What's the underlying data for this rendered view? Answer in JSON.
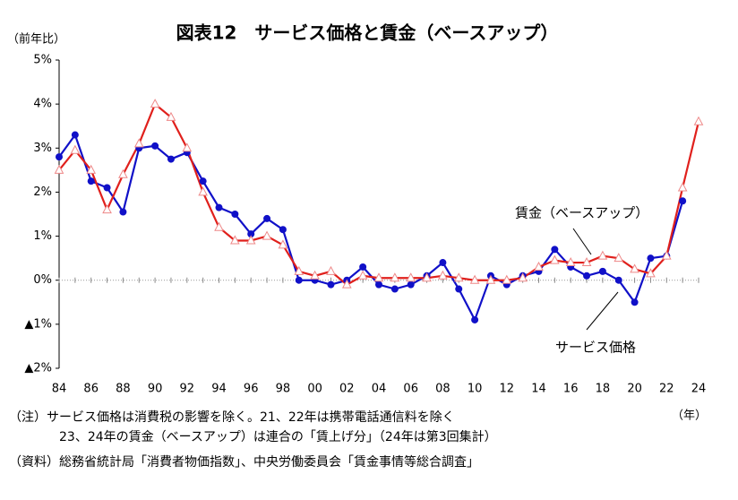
{
  "chart_data": {
    "type": "line",
    "title": "図表12　サービス価格と賃金（ベースアップ）",
    "y_label": "（前年比）",
    "x_label": "（年）",
    "categories": [
      "84",
      null,
      "86",
      null,
      "88",
      null,
      "90",
      null,
      "92",
      null,
      "94",
      null,
      "96",
      null,
      "98",
      null,
      "00",
      null,
      "02",
      null,
      "04",
      null,
      "06",
      null,
      "08",
      null,
      "10",
      null,
      "12",
      null,
      "14",
      null,
      "16",
      null,
      "18",
      null,
      "20",
      null,
      "22",
      null,
      "24"
    ],
    "series": [
      {
        "name": "サービス価格",
        "color": "#1010c8",
        "marker": "circle",
        "values": [
          2.8,
          3.3,
          2.25,
          2.1,
          1.55,
          3.0,
          3.05,
          2.75,
          2.9,
          2.25,
          1.65,
          1.5,
          1.05,
          1.4,
          1.15,
          0.0,
          0.0,
          -0.1,
          0.0,
          0.3,
          -0.1,
          -0.2,
          -0.1,
          0.1,
          0.4,
          -0.2,
          -0.9,
          0.1,
          -0.1,
          0.1,
          0.2,
          0.7,
          0.3,
          0.1,
          0.2,
          0.0,
          -0.5,
          0.5,
          0.55,
          1.8,
          null
        ]
      },
      {
        "name": "賃金（ベースアップ）",
        "color": "#e0201c",
        "marker": "triangle",
        "values": [
          2.5,
          2.95,
          2.5,
          1.6,
          2.4,
          3.1,
          4.0,
          3.7,
          3.0,
          2.0,
          1.2,
          0.9,
          0.9,
          1.0,
          0.8,
          0.2,
          0.1,
          0.2,
          -0.1,
          0.1,
          0.05,
          0.05,
          0.05,
          0.05,
          0.1,
          0.05,
          0.0,
          0.0,
          0.0,
          0.05,
          0.3,
          0.45,
          0.4,
          0.4,
          0.55,
          0.5,
          0.25,
          0.15,
          0.55,
          2.1,
          3.6
        ]
      }
    ],
    "ylim": [
      -2,
      5
    ],
    "yticks": [
      {
        "value": 5,
        "label": "5%"
      },
      {
        "value": 4,
        "label": "4%"
      },
      {
        "value": 3,
        "label": "3%"
      },
      {
        "value": 2,
        "label": "2%"
      },
      {
        "value": 1,
        "label": "1%"
      },
      {
        "value": 0,
        "label": "0%"
      },
      {
        "value": -1,
        "label": "▲1%"
      },
      {
        "value": -2,
        "label": "▲2%"
      }
    ],
    "grid": false,
    "notes": [
      "（注）サービス価格は消費税の影響を除く。21、22年は携帯電話通信料を除く",
      "23、24年の賃金（ベースアップ）は連合の「賃上げ分」（24年は第3回集計）",
      "（資料）総務省統計局「消費者物価指数」、中央労働委員会「賃金事情等総合調査」"
    ]
  }
}
